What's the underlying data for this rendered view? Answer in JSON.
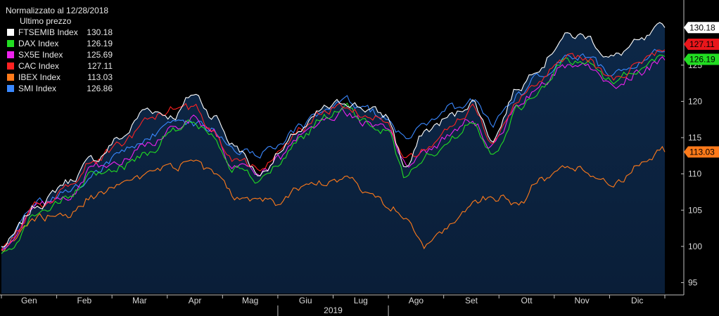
{
  "legend": {
    "title": "Normalizzato al 12/28/2018",
    "subtitle": "Ultimo prezzo"
  },
  "chart_data": {
    "type": "line",
    "x_label": "2019",
    "months": [
      "Gen",
      "Feb",
      "Mar",
      "Apr",
      "Mag",
      "Giu",
      "Lug",
      "Ago",
      "Set",
      "Ott",
      "Nov",
      "Dic"
    ],
    "y_ticks": [
      95,
      100,
      105,
      110,
      115,
      120,
      125
    ],
    "ylim": [
      93.5,
      133.5
    ],
    "grid": false,
    "legend_position": "top-left",
    "x_anchors": [
      0,
      0.06,
      0.1,
      0.14,
      0.18,
      0.22,
      0.26,
      0.29,
      0.32,
      0.35,
      0.39,
      0.42,
      0.45,
      0.49,
      0.52,
      0.55,
      0.58,
      0.61,
      0.64,
      0.68,
      0.71,
      0.74,
      0.78,
      0.81,
      0.85,
      0.88,
      0.92,
      0.96,
      1
    ],
    "series": [
      {
        "name": "FTSEMIB Index",
        "value": "130.18",
        "last": 130.18,
        "color": "#ffffff",
        "fill": true,
        "anchors": [
          100,
          106,
          109,
          112,
          115,
          119,
          118,
          121,
          118,
          114,
          110,
          113,
          116,
          119,
          120,
          119,
          118,
          111,
          116,
          118,
          120,
          115,
          122,
          125,
          129,
          129,
          126,
          128,
          130.18
        ]
      },
      {
        "name": "DAX Index",
        "value": "126.19",
        "last": 126.19,
        "color": "#22dd22",
        "anchors": [
          99,
          105,
          106.5,
          110,
          111,
          113,
          116,
          117,
          115,
          111,
          109,
          111.5,
          115,
          118,
          119,
          117,
          116,
          109.5,
          112.5,
          115,
          117.5,
          113,
          119,
          121.5,
          125.5,
          125.5,
          123,
          124.5,
          126.19
        ]
      },
      {
        "name": "SX5E Index",
        "value": "125.69",
        "last": 125.69,
        "color": "#ee22ee",
        "anchors": [
          99.5,
          105.5,
          107,
          111,
          112,
          114,
          116.5,
          117.5,
          115.5,
          111,
          110,
          112,
          115,
          118,
          118.5,
          117,
          116.5,
          111,
          113,
          115.5,
          117.5,
          114,
          119.5,
          122,
          125,
          125,
          122,
          124,
          125.69
        ]
      },
      {
        "name": "CAC Index",
        "value": "127.11",
        "last": 127.11,
        "color": "#ff2222",
        "anchors": [
          99.5,
          106,
          108,
          112,
          114,
          117,
          119,
          119,
          116,
          112,
          111,
          113,
          116,
          119,
          119.5,
          118,
          117.5,
          112,
          114,
          117,
          119,
          115,
          120.5,
          123,
          126,
          126,
          123,
          125,
          127.11
        ]
      },
      {
        "name": "IBEX Index",
        "value": "113.03",
        "last": 113.03,
        "color": "#ff7a1a",
        "anchors": [
          99.5,
          104,
          104.5,
          107,
          108,
          110,
          111,
          112,
          110,
          107,
          106,
          106,
          108,
          109,
          109.5,
          108,
          106,
          104,
          100,
          103,
          106,
          107,
          106,
          109,
          111,
          110.5,
          108.5,
          111,
          113.03
        ]
      },
      {
        "name": "SMI Index",
        "value": "126.86",
        "last": 126.86,
        "color": "#3a88ff",
        "anchors": [
          100,
          106,
          107.5,
          110,
          113,
          115,
          116.5,
          117,
          116,
          113,
          113,
          114,
          116.5,
          119,
          120,
          118.5,
          118,
          115,
          117,
          119,
          120,
          117,
          121,
          123.5,
          126,
          126,
          124,
          125.5,
          126.86
        ]
      }
    ]
  }
}
